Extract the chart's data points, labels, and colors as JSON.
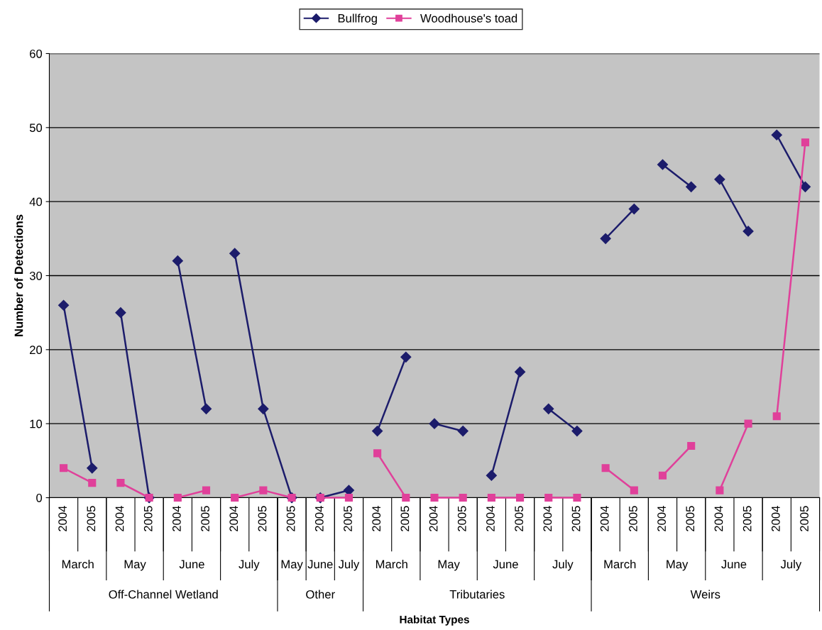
{
  "chart_data": {
    "type": "line",
    "annotations": [
      "Habitat Types"
    ],
    "ylabel": "Number of Detections",
    "categories": [
      [
        "2004",
        "March",
        "Off-Channel Wetland"
      ],
      [
        "2005",
        null,
        null
      ],
      [
        "2004",
        "May",
        null
      ],
      [
        "2005",
        null,
        null
      ],
      [
        "2004",
        "June",
        null
      ],
      [
        "2005",
        null,
        null
      ],
      [
        "2004",
        "July",
        null
      ],
      [
        "2005",
        null,
        null
      ],
      [
        "2005",
        "May",
        "Other"
      ],
      [
        "2004",
        "June",
        null
      ],
      [
        "2005",
        "July",
        null
      ],
      [
        "2004",
        "March",
        "Tributaries"
      ],
      [
        "2005",
        null,
        null
      ],
      [
        "2004",
        "May",
        null
      ],
      [
        "2005",
        null,
        null
      ],
      [
        "2004",
        "June",
        null
      ],
      [
        "2005",
        null,
        null
      ],
      [
        "2004",
        "July",
        null
      ],
      [
        "2005",
        null,
        null
      ],
      [
        "2004",
        "March",
        "Weirs"
      ],
      [
        "2005",
        null,
        null
      ],
      [
        "2004",
        "May",
        null
      ],
      [
        "2005",
        null,
        null
      ],
      [
        "2004",
        "June",
        null
      ],
      [
        "2005",
        null,
        null
      ],
      [
        "2004",
        "July",
        null
      ],
      [
        "2005",
        null,
        null
      ]
    ],
    "series": [
      {
        "name": "Bullfrog",
        "color": "#1c1c6b",
        "marker": "diamond",
        "values": [
          26,
          4,
          25,
          0,
          32,
          12,
          33,
          12,
          0,
          0,
          1,
          9,
          19,
          10,
          9,
          3,
          17,
          12,
          9,
          35,
          39,
          45,
          42,
          43,
          36,
          49,
          42
        ]
      },
      {
        "name": "Woodhouse's toad",
        "color": "#e0409a",
        "marker": "square",
        "values": [
          4,
          2,
          2,
          0,
          0,
          1,
          0,
          1,
          0,
          0,
          0,
          6,
          0,
          0,
          0,
          0,
          0,
          0,
          0,
          4,
          1,
          3,
          7,
          1,
          10,
          11,
          48
        ]
      }
    ],
    "ylim": [
      0,
      60
    ],
    "yticks": [
      0,
      10,
      20,
      30,
      40,
      50,
      60
    ],
    "grid": "y",
    "legend": "top"
  }
}
